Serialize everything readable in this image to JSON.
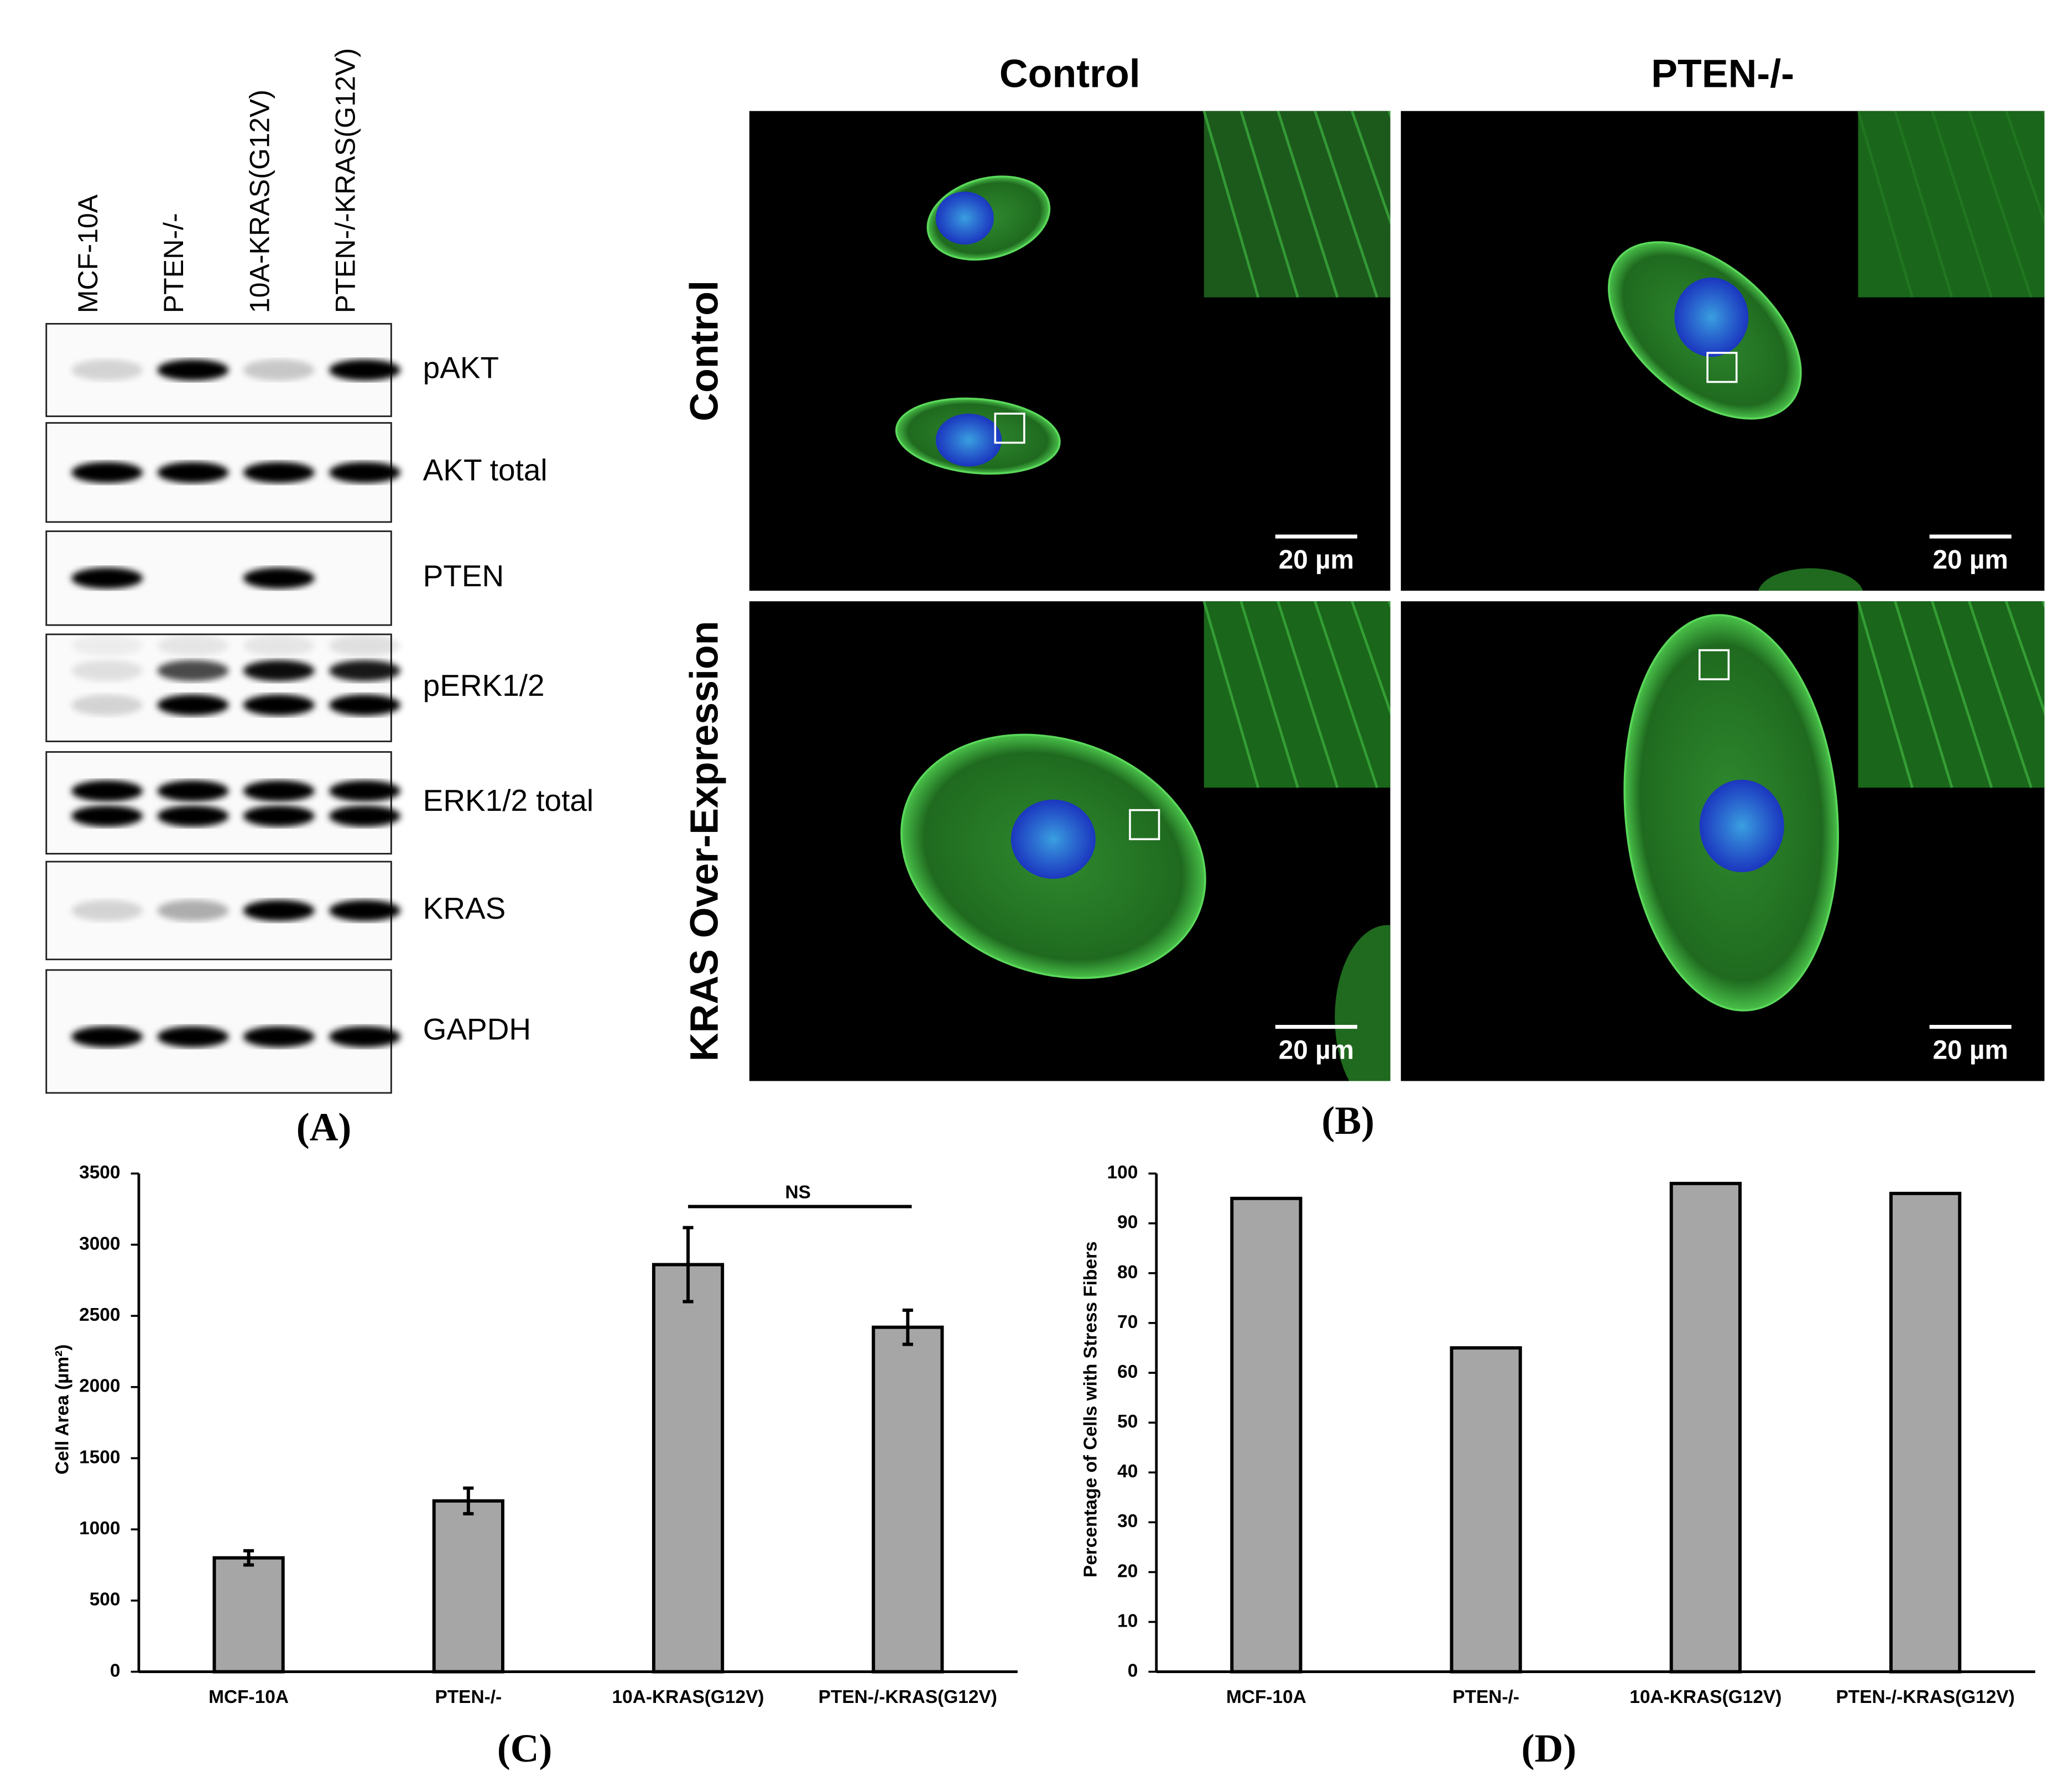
{
  "blot": {
    "panel_label": "(A)",
    "lanes": [
      "MCF-10A",
      "PTEN-/-",
      "10A-KRAS(G12V)",
      "PTEN-/-KRAS(G12V)"
    ],
    "rows": [
      "pAKT",
      "AKT total",
      "PTEN",
      "pERK1/2",
      "ERK1/2 total",
      "KRAS",
      "GAPDH"
    ]
  },
  "micrographs": {
    "panel_label": "(B)",
    "columns": [
      "Control",
      "PTEN-/-"
    ],
    "rows": [
      "Control",
      "KRAS Over-Expression"
    ],
    "scale_bar": "20 µm"
  },
  "chart_data": [
    {
      "type": "bar",
      "panel_label": "(C)",
      "y_label": "Cell Area (µm²)",
      "categories": [
        "MCF-10A",
        "PTEN-/-",
        "10A-KRAS(G12V)",
        "PTEN-/-KRAS(G12V)"
      ],
      "values": [
        800,
        1200,
        2860,
        2420
      ],
      "errors": [
        50,
        90,
        260,
        120
      ],
      "color": "#a6a6a6",
      "annotation": "NS",
      "ylim": [
        0,
        3500
      ],
      "yticks": [
        0,
        500,
        1000,
        1500,
        2000,
        2500,
        3000,
        3500
      ]
    },
    {
      "type": "bar",
      "panel_label": "(D)",
      "y_label": "Percentage of Cells with Stress Fibers",
      "categories": [
        "MCF-10A",
        "PTEN-/-",
        "10A-KRAS(G12V)",
        "PTEN-/-KRAS(G12V)"
      ],
      "values": [
        95,
        65,
        98,
        96
      ],
      "color": "#a6a6a6",
      "ylim": [
        0,
        100
      ],
      "yticks": [
        0,
        10,
        20,
        30,
        40,
        50,
        60,
        70,
        80,
        90,
        100
      ]
    }
  ]
}
